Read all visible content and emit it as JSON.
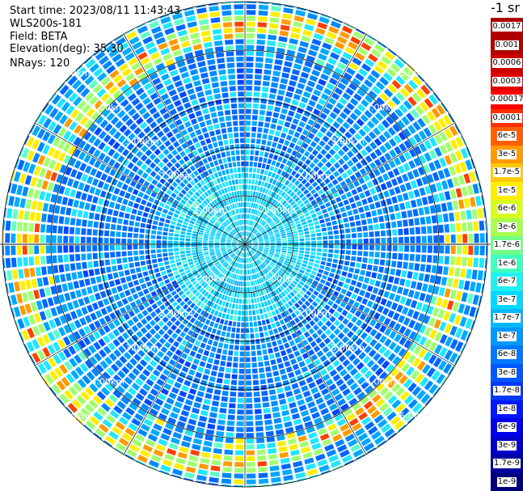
{
  "header": {
    "start_time": "Start time: 2023/08/11 11:43:43",
    "instrument": "WLS200s-181",
    "field": "Field: BETA",
    "elevation": "Elevation(deg): 35.30",
    "nrays": "NRays: 120"
  },
  "chart_data": {
    "type": "heatmap",
    "projection": "polar PPI",
    "field": "BETA",
    "elevation_deg": 35.3,
    "n_rays": 120,
    "range_rings_km": [
      1,
      2,
      3,
      4,
      5
    ],
    "range_labels": [
      "1.00km",
      "2.00km",
      "3.00km",
      "4.00km",
      "5.00km"
    ],
    "unit_label": "-1 sr",
    "colorbar": [
      {
        "label": "0.0017",
        "color": "#b00000"
      },
      {
        "label": "0.001",
        "color": "#b00000"
      },
      {
        "label": "0.0006",
        "color": "#cc0000"
      },
      {
        "label": "0.0003",
        "color": "#e00000"
      },
      {
        "label": "0.00017",
        "color": "#ff0000"
      },
      {
        "label": "0.0001",
        "color": "#ff3000"
      },
      {
        "label": "6e-5",
        "color": "#ff6000"
      },
      {
        "label": "3e-5",
        "color": "#ff9a00"
      },
      {
        "label": "1.7e-5",
        "color": "#ffc800"
      },
      {
        "label": "1e-5",
        "color": "#ffee00"
      },
      {
        "label": "6e-6",
        "color": "#d6ff20"
      },
      {
        "label": "3e-6",
        "color": "#a6ff50"
      },
      {
        "label": "1.7e-6",
        "color": "#70ff86"
      },
      {
        "label": "1e-6",
        "color": "#40ffc0"
      },
      {
        "label": "6e-7",
        "color": "#20f0f0"
      },
      {
        "label": "3e-7",
        "color": "#00d8ff"
      },
      {
        "label": "1.7e-7",
        "color": "#00b8ff"
      },
      {
        "label": "1e-7",
        "color": "#0098ff"
      },
      {
        "label": "6e-8",
        "color": "#0078ff"
      },
      {
        "label": "3e-8",
        "color": "#0058ff"
      },
      {
        "label": "1.7e-8",
        "color": "#0038ff"
      },
      {
        "label": "1e-8",
        "color": "#0018ff"
      },
      {
        "label": "6e-9",
        "color": "#0000ea"
      },
      {
        "label": "3e-9",
        "color": "#0000c8"
      },
      {
        "label": "1.7e-9",
        "color": "#0000a0"
      },
      {
        "label": "1e-9",
        "color": "#00007a"
      }
    ],
    "aerosol_layer_range_km": [
      4.2,
      5.0
    ],
    "grid": true
  }
}
